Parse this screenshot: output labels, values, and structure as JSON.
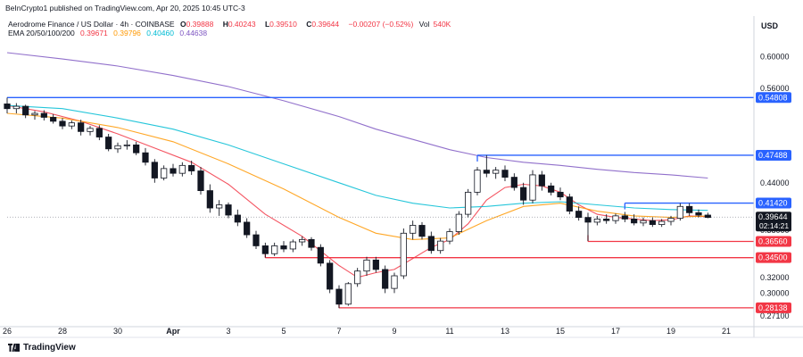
{
  "header": {
    "published_text": "BeInCrypto1 published on TradingView.com, Apr 20, 2025 10:45 UTC-3",
    "symbol": "Aerodrome Finance / US Dollar · 4h · COINBASE",
    "ohlc": {
      "o_label": "O",
      "o": "0.39888",
      "h_label": "H",
      "h": "0.40243",
      "l_label": "L",
      "l": "0.39510",
      "c_label": "C",
      "c": "0.39644",
      "change": "−0.00207 (−0.52%)",
      "vol_label": "Vol",
      "vol": "540K"
    },
    "ema": {
      "label": "EMA 20/50/100/200",
      "ema20": "0.39671",
      "ema50": "0.39796",
      "ema100": "0.40460",
      "ema200": "0.44638"
    },
    "currency": "USD"
  },
  "footer": {
    "brand": "TradingView"
  },
  "colors": {
    "up": "#089981",
    "down": "#f23645",
    "candle_body_up": "#ffffff",
    "candle_body_down": "#131722",
    "ema20": "#f23645",
    "ema50": "#ff9800",
    "ema100": "#00bcd4",
    "ema200": "#7e57c2",
    "resistance": "#2962ff",
    "support": "#f23645"
  },
  "chart_data": {
    "type": "candlestick",
    "xlim": [
      0,
      81
    ],
    "ylim": [
      0.262,
      0.622
    ],
    "y_ticks": [
      "0.60000",
      "0.56000",
      "0.47488",
      "0.44000",
      "0.41420",
      "0.38000",
      "0.36560",
      "0.34500",
      "0.32000",
      "0.30000",
      "0.28138",
      "0.27100"
    ],
    "x_ticks": [
      {
        "x": 0,
        "label": "26"
      },
      {
        "x": 6,
        "label": "28"
      },
      {
        "x": 12,
        "label": "30"
      },
      {
        "x": 18,
        "label": "Apr"
      },
      {
        "x": 24,
        "label": "3"
      },
      {
        "x": 30,
        "label": "5"
      },
      {
        "x": 36,
        "label": "7"
      },
      {
        "x": 42,
        "label": "9"
      },
      {
        "x": 48,
        "label": "11"
      },
      {
        "x": 54,
        "label": "13"
      },
      {
        "x": 60,
        "label": "15"
      },
      {
        "x": 66,
        "label": "17"
      },
      {
        "x": 72,
        "label": "19"
      },
      {
        "x": 78,
        "label": "21"
      }
    ],
    "price_tag": {
      "value": 0.39644,
      "label": "0.39644",
      "countdown": "02:14:21"
    },
    "levels": [
      {
        "value": 0.54808,
        "label": "0.54808",
        "kind": "resistance",
        "x_start": 0
      },
      {
        "value": 0.47488,
        "label": "0.47488",
        "kind": "resistance",
        "x_start": 51
      },
      {
        "value": 0.4142,
        "label": "0.41420",
        "kind": "resistance",
        "x_start": 67
      },
      {
        "value": 0.3656,
        "label": "0.36560",
        "kind": "support",
        "x_start": 63
      },
      {
        "value": 0.345,
        "label": "0.34500",
        "kind": "support",
        "x_start": 28
      },
      {
        "value": 0.28138,
        "label": "0.28138",
        "kind": "support",
        "x_start": 36
      }
    ],
    "candles": [
      [
        0.54,
        0.548,
        0.528,
        0.534
      ],
      [
        0.534,
        0.541,
        0.528,
        0.537
      ],
      [
        0.537,
        0.539,
        0.522,
        0.526
      ],
      [
        0.526,
        0.531,
        0.52,
        0.528
      ],
      [
        0.528,
        0.532,
        0.519,
        0.523
      ],
      [
        0.523,
        0.527,
        0.515,
        0.518
      ],
      [
        0.518,
        0.522,
        0.508,
        0.512
      ],
      [
        0.512,
        0.519,
        0.508,
        0.516
      ],
      [
        0.516,
        0.52,
        0.5,
        0.505
      ],
      [
        0.505,
        0.512,
        0.5,
        0.509
      ],
      [
        0.509,
        0.513,
        0.494,
        0.498
      ],
      [
        0.498,
        0.502,
        0.48,
        0.483
      ],
      [
        0.483,
        0.491,
        0.478,
        0.487
      ],
      [
        0.487,
        0.494,
        0.482,
        0.488
      ],
      [
        0.488,
        0.492,
        0.475,
        0.478
      ],
      [
        0.478,
        0.484,
        0.462,
        0.466
      ],
      [
        0.466,
        0.47,
        0.44,
        0.446
      ],
      [
        0.446,
        0.462,
        0.443,
        0.458
      ],
      [
        0.458,
        0.464,
        0.448,
        0.452
      ],
      [
        0.452,
        0.466,
        0.448,
        0.462
      ],
      [
        0.462,
        0.468,
        0.45,
        0.455
      ],
      [
        0.455,
        0.46,
        0.425,
        0.43
      ],
      [
        0.43,
        0.438,
        0.402,
        0.408
      ],
      [
        0.408,
        0.418,
        0.398,
        0.412
      ],
      [
        0.412,
        0.415,
        0.395,
        0.399
      ],
      [
        0.399,
        0.406,
        0.385,
        0.39
      ],
      [
        0.39,
        0.395,
        0.37,
        0.374
      ],
      [
        0.374,
        0.379,
        0.356,
        0.36
      ],
      [
        0.36,
        0.364,
        0.345,
        0.35
      ],
      [
        0.35,
        0.364,
        0.347,
        0.36
      ],
      [
        0.36,
        0.366,
        0.352,
        0.356
      ],
      [
        0.356,
        0.368,
        0.352,
        0.365
      ],
      [
        0.365,
        0.372,
        0.36,
        0.368
      ],
      [
        0.368,
        0.371,
        0.354,
        0.358
      ],
      [
        0.358,
        0.362,
        0.334,
        0.338
      ],
      [
        0.338,
        0.342,
        0.3,
        0.305
      ],
      [
        0.305,
        0.31,
        0.281,
        0.286
      ],
      [
        0.286,
        0.314,
        0.284,
        0.312
      ],
      [
        0.312,
        0.332,
        0.308,
        0.328
      ],
      [
        0.328,
        0.346,
        0.322,
        0.342
      ],
      [
        0.342,
        0.346,
        0.326,
        0.33
      ],
      [
        0.33,
        0.335,
        0.3,
        0.306
      ],
      [
        0.306,
        0.326,
        0.3,
        0.322
      ],
      [
        0.322,
        0.382,
        0.318,
        0.376
      ],
      [
        0.376,
        0.392,
        0.368,
        0.386
      ],
      [
        0.386,
        0.39,
        0.368,
        0.372
      ],
      [
        0.372,
        0.378,
        0.35,
        0.354
      ],
      [
        0.354,
        0.37,
        0.35,
        0.366
      ],
      [
        0.366,
        0.382,
        0.362,
        0.378
      ],
      [
        0.378,
        0.404,
        0.374,
        0.4
      ],
      [
        0.4,
        0.432,
        0.396,
        0.428
      ],
      [
        0.428,
        0.46,
        0.424,
        0.456
      ],
      [
        0.456,
        0.475,
        0.447,
        0.452
      ],
      [
        0.452,
        0.46,
        0.445,
        0.456
      ],
      [
        0.456,
        0.462,
        0.442,
        0.447
      ],
      [
        0.447,
        0.452,
        0.43,
        0.434
      ],
      [
        0.434,
        0.44,
        0.412,
        0.418
      ],
      [
        0.418,
        0.456,
        0.414,
        0.45
      ],
      [
        0.45,
        0.455,
        0.43,
        0.436
      ],
      [
        0.436,
        0.44,
        0.424,
        0.428
      ],
      [
        0.428,
        0.434,
        0.418,
        0.422
      ],
      [
        0.422,
        0.426,
        0.4,
        0.404
      ],
      [
        0.404,
        0.41,
        0.392,
        0.396
      ],
      [
        0.396,
        0.402,
        0.366,
        0.39
      ],
      [
        0.39,
        0.398,
        0.386,
        0.394
      ],
      [
        0.394,
        0.4,
        0.388,
        0.392
      ],
      [
        0.392,
        0.401,
        0.388,
        0.398
      ],
      [
        0.398,
        0.403,
        0.39,
        0.394
      ],
      [
        0.394,
        0.4,
        0.386,
        0.389
      ],
      [
        0.389,
        0.396,
        0.385,
        0.392
      ],
      [
        0.392,
        0.396,
        0.384,
        0.387
      ],
      [
        0.387,
        0.394,
        0.384,
        0.391
      ],
      [
        0.391,
        0.398,
        0.386,
        0.395
      ],
      [
        0.395,
        0.414,
        0.392,
        0.41
      ],
      [
        0.41,
        0.414,
        0.398,
        0.402
      ],
      [
        0.402,
        0.406,
        0.396,
        0.399
      ],
      [
        0.399,
        0.402,
        0.395,
        0.396
      ]
    ],
    "ema_series": [
      {
        "period": 20,
        "color_key": "ema20",
        "x": [
          0,
          4,
          8,
          12,
          16,
          20,
          24,
          28,
          32,
          36,
          38,
          40,
          42,
          44,
          46,
          48,
          50,
          52,
          54,
          56,
          58,
          60,
          62,
          64,
          66,
          68,
          70,
          72,
          74,
          76
        ],
        "y": [
          0.538,
          0.53,
          0.518,
          0.502,
          0.484,
          0.466,
          0.438,
          0.4,
          0.372,
          0.335,
          0.32,
          0.326,
          0.33,
          0.344,
          0.358,
          0.368,
          0.388,
          0.418,
          0.434,
          0.438,
          0.436,
          0.428,
          0.412,
          0.4,
          0.396,
          0.394,
          0.392,
          0.393,
          0.398,
          0.397
        ]
      },
      {
        "period": 50,
        "color_key": "ema50",
        "x": [
          0,
          6,
          12,
          18,
          24,
          30,
          36,
          40,
          44,
          48,
          52,
          56,
          60,
          64,
          68,
          72,
          76
        ],
        "y": [
          0.528,
          0.522,
          0.51,
          0.492,
          0.464,
          0.432,
          0.396,
          0.376,
          0.368,
          0.37,
          0.392,
          0.41,
          0.414,
          0.404,
          0.398,
          0.396,
          0.398
        ]
      },
      {
        "period": 100,
        "color_key": "ema100",
        "x": [
          0,
          6,
          12,
          18,
          24,
          30,
          36,
          40,
          44,
          48,
          52,
          56,
          60,
          64,
          68,
          72,
          76
        ],
        "y": [
          0.538,
          0.534,
          0.522,
          0.508,
          0.488,
          0.464,
          0.44,
          0.424,
          0.414,
          0.408,
          0.41,
          0.414,
          0.416,
          0.412,
          0.408,
          0.406,
          0.405
        ]
      },
      {
        "period": 200,
        "color_key": "ema200",
        "x": [
          0,
          6,
          12,
          18,
          24,
          30,
          36,
          40,
          44,
          48,
          52,
          56,
          60,
          64,
          68,
          72,
          76
        ],
        "y": [
          0.605,
          0.597,
          0.588,
          0.576,
          0.562,
          0.544,
          0.524,
          0.508,
          0.495,
          0.482,
          0.472,
          0.466,
          0.462,
          0.457,
          0.453,
          0.45,
          0.446
        ]
      }
    ]
  }
}
